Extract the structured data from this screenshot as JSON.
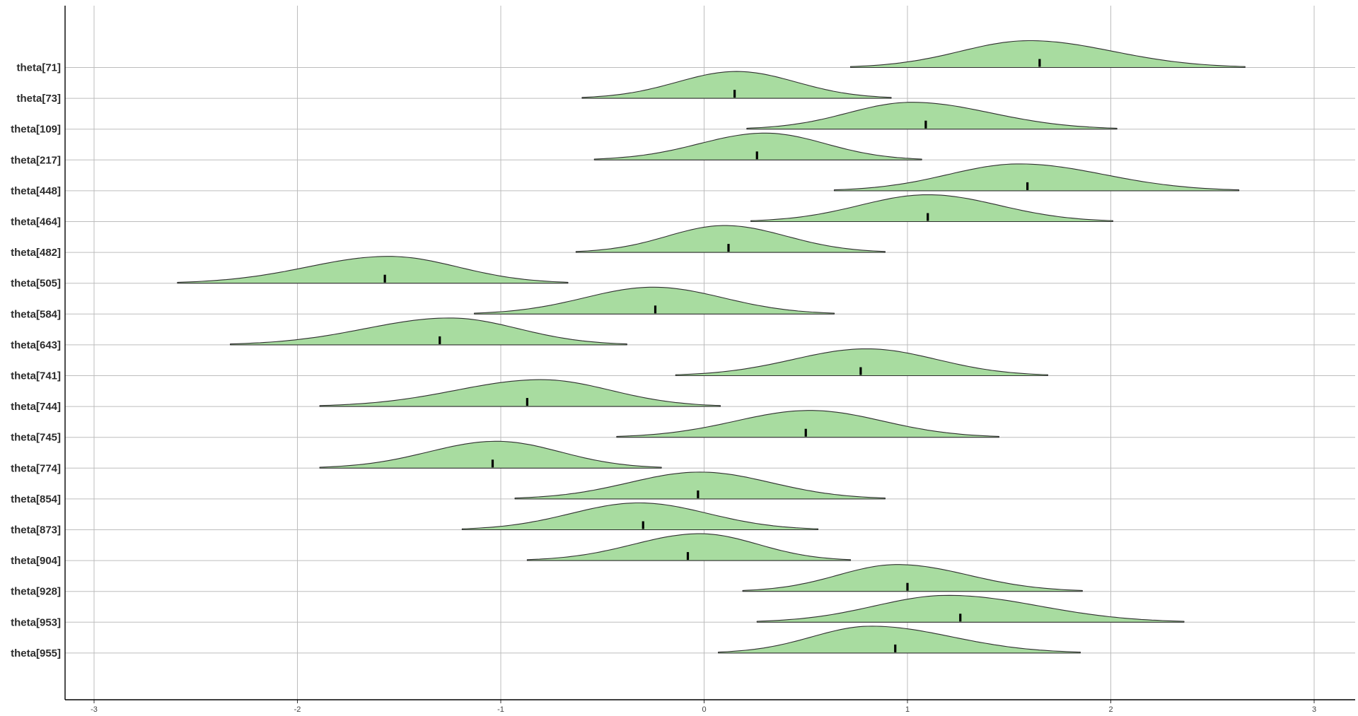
{
  "chart_data": {
    "type": "ridgeline",
    "xlim": [
      -3.15,
      3.2
    ],
    "x_ticks": [
      -3,
      -2,
      -1,
      0,
      1,
      2,
      3
    ],
    "x_tick_labels": [
      "-3",
      "-2",
      "-1",
      "0",
      "1",
      "2",
      "3"
    ],
    "grid": true,
    "fill_color": "#a8dca0",
    "outline_color": "#2f2f2f",
    "median_color": "#000000",
    "gridline_color": "#bdbdbd",
    "series": [
      {
        "label": "theta[71]",
        "min": 0.72,
        "max": 2.66,
        "mode": 1.6,
        "median": 1.65
      },
      {
        "label": "theta[73]",
        "min": -0.6,
        "max": 0.92,
        "mode": 0.16,
        "median": 0.15
      },
      {
        "label": "theta[109]",
        "min": 0.21,
        "max": 2.03,
        "mode": 1.02,
        "median": 1.09
      },
      {
        "label": "theta[217]",
        "min": -0.54,
        "max": 1.07,
        "mode": 0.3,
        "median": 0.26
      },
      {
        "label": "theta[448]",
        "min": 0.64,
        "max": 2.63,
        "mode": 1.55,
        "median": 1.59
      },
      {
        "label": "theta[464]",
        "min": 0.23,
        "max": 2.01,
        "mode": 1.1,
        "median": 1.1
      },
      {
        "label": "theta[482]",
        "min": -0.63,
        "max": 0.89,
        "mode": 0.1,
        "median": 0.12
      },
      {
        "label": "theta[505]",
        "min": -2.59,
        "max": -0.67,
        "mode": -1.55,
        "median": -1.57
      },
      {
        "label": "theta[584]",
        "min": -1.13,
        "max": 0.64,
        "mode": -0.25,
        "median": -0.24
      },
      {
        "label": "theta[643]",
        "min": -2.33,
        "max": -0.38,
        "mode": -1.25,
        "median": -1.3
      },
      {
        "label": "theta[741]",
        "min": -0.14,
        "max": 1.69,
        "mode": 0.8,
        "median": 0.77
      },
      {
        "label": "theta[744]",
        "min": -1.89,
        "max": 0.08,
        "mode": -0.8,
        "median": -0.87
      },
      {
        "label": "theta[745]",
        "min": -0.43,
        "max": 1.45,
        "mode": 0.52,
        "median": 0.5
      },
      {
        "label": "theta[774]",
        "min": -1.89,
        "max": -0.21,
        "mode": -1.02,
        "median": -1.04
      },
      {
        "label": "theta[854]",
        "min": -0.93,
        "max": 0.89,
        "mode": -0.02,
        "median": -0.03
      },
      {
        "label": "theta[873]",
        "min": -1.19,
        "max": 0.56,
        "mode": -0.32,
        "median": -0.3
      },
      {
        "label": "theta[904]",
        "min": -0.87,
        "max": 0.72,
        "mode": -0.02,
        "median": -0.08
      },
      {
        "label": "theta[928]",
        "min": 0.19,
        "max": 1.86,
        "mode": 0.95,
        "median": 1.0
      },
      {
        "label": "theta[953]",
        "min": 0.26,
        "max": 2.36,
        "mode": 1.2,
        "median": 1.26
      },
      {
        "label": "theta[955]",
        "min": 0.07,
        "max": 1.85,
        "mode": 0.82,
        "median": 0.94
      }
    ]
  }
}
